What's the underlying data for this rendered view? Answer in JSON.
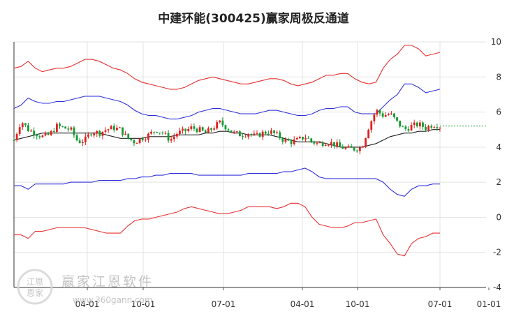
{
  "chart_data": {
    "type": "candlestick-channel",
    "title": "中建环能(300425)赢家周极反通道",
    "x_ticks": [
      "04-01",
      "10-01",
      "07-01",
      "04-01",
      "10-01",
      "07-01",
      "01-01"
    ],
    "y_ticks": [
      10,
      8,
      6,
      4,
      2,
      0,
      -2,
      -4
    ],
    "ylim": [
      -4,
      10
    ],
    "grid": true,
    "legend": "none",
    "colors": {
      "outer_band": "#e83030",
      "inner_band": "#3030d8",
      "moving_average": "#222222",
      "up_candle": "#e02020",
      "down_candle": "#109a30",
      "last_price_line": "#109a30"
    },
    "last_price": 5.2,
    "series": [
      {
        "key": "outer_upper",
        "y": [
          8.5,
          8.6,
          8.9,
          8.5,
          8.3,
          8.4,
          8.5,
          8.5,
          8.6,
          8.8,
          9.0,
          9.0,
          8.9,
          8.7,
          8.5,
          8.4,
          8.2,
          7.9,
          7.7,
          7.6,
          7.5,
          7.4,
          7.3,
          7.3,
          7.4,
          7.6,
          7.8,
          7.9,
          8.0,
          7.9,
          7.8,
          7.7,
          7.6,
          7.6,
          7.7,
          7.8,
          7.9,
          7.9,
          7.8,
          7.6,
          7.5,
          7.6,
          7.7,
          7.9,
          8.1,
          8.1,
          8.2,
          8.2,
          7.9,
          7.7,
          7.6,
          7.7,
          8.5,
          9.0,
          9.3,
          9.8,
          9.8,
          9.6,
          9.2,
          9.3,
          9.4
        ]
      },
      {
        "key": "inner_upper",
        "y": [
          6.2,
          6.4,
          6.8,
          6.6,
          6.5,
          6.5,
          6.6,
          6.6,
          6.7,
          6.8,
          6.9,
          6.9,
          6.9,
          6.8,
          6.7,
          6.6,
          6.4,
          6.1,
          5.9,
          5.8,
          5.8,
          5.7,
          5.6,
          5.6,
          5.7,
          5.8,
          6.0,
          6.1,
          6.2,
          6.2,
          6.1,
          6.0,
          5.9,
          5.9,
          5.9,
          6.0,
          6.1,
          6.1,
          6.0,
          5.9,
          5.8,
          5.8,
          5.9,
          6.1,
          6.2,
          6.2,
          6.3,
          6.3,
          6.0,
          5.9,
          5.9,
          5.9,
          6.3,
          6.7,
          7.0,
          7.6,
          7.6,
          7.4,
          7.1,
          7.2,
          7.3
        ]
      },
      {
        "key": "inner_lower",
        "y": [
          1.8,
          1.8,
          1.6,
          1.9,
          1.9,
          1.9,
          1.9,
          1.9,
          2.0,
          2.0,
          2.0,
          2.0,
          2.1,
          2.1,
          2.1,
          2.1,
          2.2,
          2.2,
          2.3,
          2.3,
          2.4,
          2.4,
          2.5,
          2.5,
          2.5,
          2.5,
          2.4,
          2.4,
          2.4,
          2.4,
          2.4,
          2.4,
          2.4,
          2.5,
          2.5,
          2.5,
          2.5,
          2.5,
          2.6,
          2.6,
          2.7,
          2.8,
          2.6,
          2.3,
          2.2,
          2.2,
          2.2,
          2.2,
          2.2,
          2.2,
          2.2,
          2.2,
          2.0,
          1.6,
          1.3,
          1.2,
          1.6,
          1.8,
          1.8,
          1.9,
          1.9
        ]
      },
      {
        "key": "outer_lower",
        "y": [
          -1.0,
          -1.0,
          -1.2,
          -0.8,
          -0.8,
          -0.7,
          -0.6,
          -0.6,
          -0.6,
          -0.6,
          -0.6,
          -0.7,
          -0.8,
          -0.9,
          -0.9,
          -0.9,
          -0.5,
          -0.2,
          -0.1,
          -0.1,
          0.0,
          0.1,
          0.2,
          0.3,
          0.5,
          0.6,
          0.5,
          0.4,
          0.3,
          0.2,
          0.2,
          0.3,
          0.4,
          0.6,
          0.6,
          0.6,
          0.6,
          0.5,
          0.6,
          0.8,
          0.8,
          0.6,
          0.0,
          -0.4,
          -0.5,
          -0.6,
          -0.6,
          -0.5,
          -0.3,
          -0.3,
          -0.2,
          -0.1,
          -1.0,
          -1.5,
          -2.1,
          -2.2,
          -1.5,
          -1.2,
          -1.1,
          -0.9,
          -0.9
        ]
      },
      {
        "key": "moving_average",
        "y": [
          4.4,
          4.5,
          4.6,
          4.7,
          4.8,
          4.8,
          4.8,
          4.8,
          4.8,
          4.8,
          4.8,
          4.8,
          4.8,
          4.7,
          4.6,
          4.5,
          4.5,
          4.5,
          4.5,
          4.6,
          4.6,
          4.6,
          4.6,
          4.7,
          4.7,
          4.7,
          4.7,
          4.8,
          4.8,
          4.9,
          4.9,
          4.8,
          4.8,
          4.7,
          4.7,
          4.7,
          4.7,
          4.6,
          4.5,
          4.4,
          4.3,
          4.3,
          4.3,
          4.3,
          4.2,
          4.1,
          4.0,
          4.0,
          4.0,
          4.0,
          4.1,
          4.2,
          4.4,
          4.6,
          4.7,
          4.8,
          4.8,
          4.9,
          4.9,
          5.0,
          5.0
        ]
      },
      {
        "key": "close",
        "y": [
          4.4,
          5.5,
          5.0,
          4.8,
          4.6,
          4.7,
          5.2,
          5.1,
          5.0,
          4.3,
          4.4,
          4.9,
          4.8,
          5.0,
          5.1,
          5.0,
          4.5,
          4.3,
          4.5,
          4.7,
          5.0,
          4.8,
          4.4,
          4.8,
          4.9,
          5.1,
          5.0,
          4.8,
          5.1,
          5.4,
          5.1,
          4.8,
          4.7,
          4.8,
          4.6,
          4.8,
          4.9,
          4.7,
          4.4,
          4.3,
          4.4,
          4.6,
          4.3,
          4.2,
          4.3,
          4.2,
          4.0,
          3.9,
          3.9,
          4.0,
          5.2,
          6.1,
          5.8,
          5.9,
          5.4,
          5.0,
          5.2,
          5.3,
          5.1,
          5.3,
          5.2
        ]
      }
    ]
  },
  "watermark": {
    "name": "赢家江恩软件",
    "url": "www.360gann.com",
    "seal": [
      "江恩",
      "恩家"
    ]
  }
}
